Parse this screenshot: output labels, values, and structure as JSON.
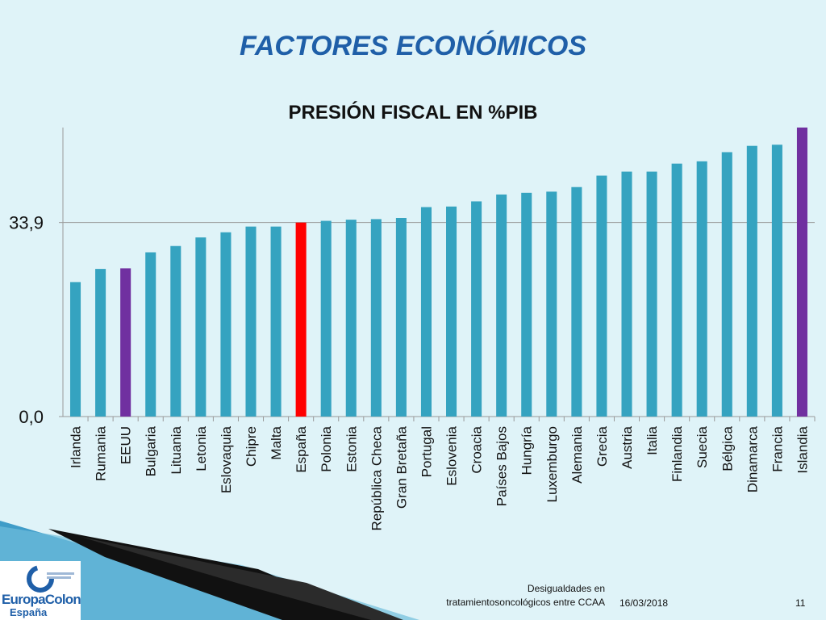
{
  "slide": {
    "title": "FACTORES ECONÓMICOS"
  },
  "footer": {
    "caption_line1": "Desigualdades en",
    "caption_line2": "tratamientosoncológicos entre CCAA",
    "date": "16/03/2018",
    "page": "11"
  },
  "logo": {
    "name": "EuropaColon",
    "country": "España"
  },
  "colors": {
    "default_bar": "#35a3c0",
    "highlight_spain": "#ff0000",
    "highlight_other": "#7030a0",
    "title": "#1f5fa8",
    "background": "#dff3f8"
  },
  "chart_data": {
    "type": "bar",
    "title": "PRESIÓN FISCAL EN %PIB",
    "categories": [
      "Irlanda",
      "Rumania",
      "EEUU",
      "Bulgaria",
      "Lituania",
      "Letonia",
      "Eslovaquia",
      "Chipre",
      "Malta",
      "España",
      "Polonia",
      "Estonia",
      "República Checa",
      "Gran Bretaña",
      "Portugal",
      "Eslovenia",
      "Croacia",
      "Países Bajos",
      "Hungría",
      "Luxemburgo",
      "Alemania",
      "Grecia",
      "Austria",
      "Italia",
      "Finlandia",
      "Suecia",
      "Bélgica",
      "Dinamarca",
      "Francia",
      "Islandia"
    ],
    "values": [
      23.5,
      25.8,
      25.9,
      28.7,
      29.8,
      31.3,
      32.2,
      33.2,
      33.2,
      33.9,
      34.2,
      34.4,
      34.5,
      34.7,
      36.6,
      36.7,
      37.6,
      38.8,
      39.1,
      39.3,
      40.1,
      42.1,
      42.8,
      42.8,
      44.2,
      44.6,
      46.2,
      47.3,
      47.5,
      50.5
    ],
    "highlights": {
      "España": "spain",
      "EEUU": "other",
      "Islandia": "other"
    },
    "yticks": [
      0.0,
      33.9
    ],
    "ytick_labels": [
      "0,0",
      "33,9"
    ],
    "ylim": [
      0,
      50.5
    ],
    "reference_line": 33.9,
    "xlabel": "",
    "ylabel": ""
  }
}
